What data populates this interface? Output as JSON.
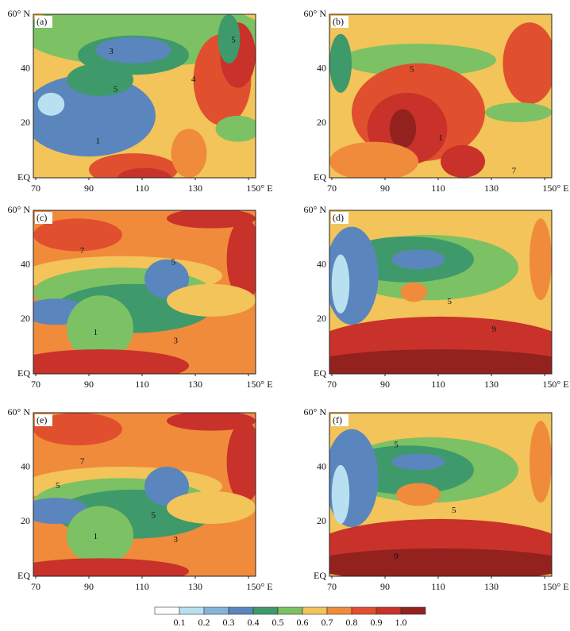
{
  "panels": [
    {
      "label": "(a)",
      "contour_labels": [
        "3",
        "5",
        "5",
        "4",
        "1"
      ]
    },
    {
      "label": "(b)",
      "contour_labels": [
        "5",
        "1",
        "7"
      ]
    },
    {
      "label": "(c)",
      "contour_labels": [
        "7",
        "5",
        "1",
        "3"
      ]
    },
    {
      "label": "(d)",
      "contour_labels": [
        "5",
        "9"
      ]
    },
    {
      "label": "(e)",
      "contour_labels": [
        "7",
        "5",
        "5",
        "1",
        "3"
      ]
    },
    {
      "label": "(f)",
      "contour_labels": [
        "5",
        "5",
        "9"
      ]
    }
  ],
  "axes": {
    "lat_labels": [
      "60° N",
      "40",
      "20",
      "EQ"
    ],
    "lon_labels": [
      "70",
      "90",
      "110",
      "130",
      "150° E"
    ]
  },
  "colorbar": {
    "colors": [
      "#ffffff",
      "#b9e0f0",
      "#86b4d8",
      "#5a86bd",
      "#3e9a6b",
      "#7cc163",
      "#f2c45a",
      "#f08b3c",
      "#e0502e",
      "#c8322a",
      "#93221f"
    ],
    "ticks": [
      0.1,
      0.2,
      0.3,
      0.4,
      0.5,
      0.6,
      0.7,
      0.8,
      0.9,
      {
        "value": 1,
        "label": "1.0"
      }
    ]
  }
}
